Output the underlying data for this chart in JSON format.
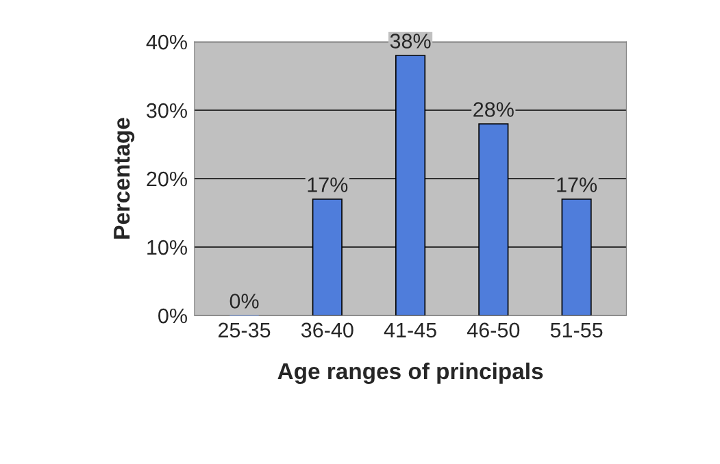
{
  "chart_data": {
    "type": "bar",
    "xlabel": "Age ranges of principals",
    "ylabel": "Percentage",
    "categories": [
      "25-35",
      "36-40",
      "41-45",
      "46-50",
      "51-55"
    ],
    "values": [
      0,
      17,
      38,
      28,
      17
    ],
    "value_labels": [
      "0%",
      "17%",
      "38%",
      "28%",
      "17%"
    ],
    "color": "#4f7ddb",
    "ylim": [
      0,
      40
    ],
    "yticks": [
      {
        "value": 0,
        "label": "0%"
      },
      {
        "value": 10,
        "label": "10%"
      },
      {
        "value": 20,
        "label": "20%"
      },
      {
        "value": 30,
        "label": "30%"
      },
      {
        "value": 40,
        "label": "40%"
      }
    ],
    "grid": "y"
  }
}
